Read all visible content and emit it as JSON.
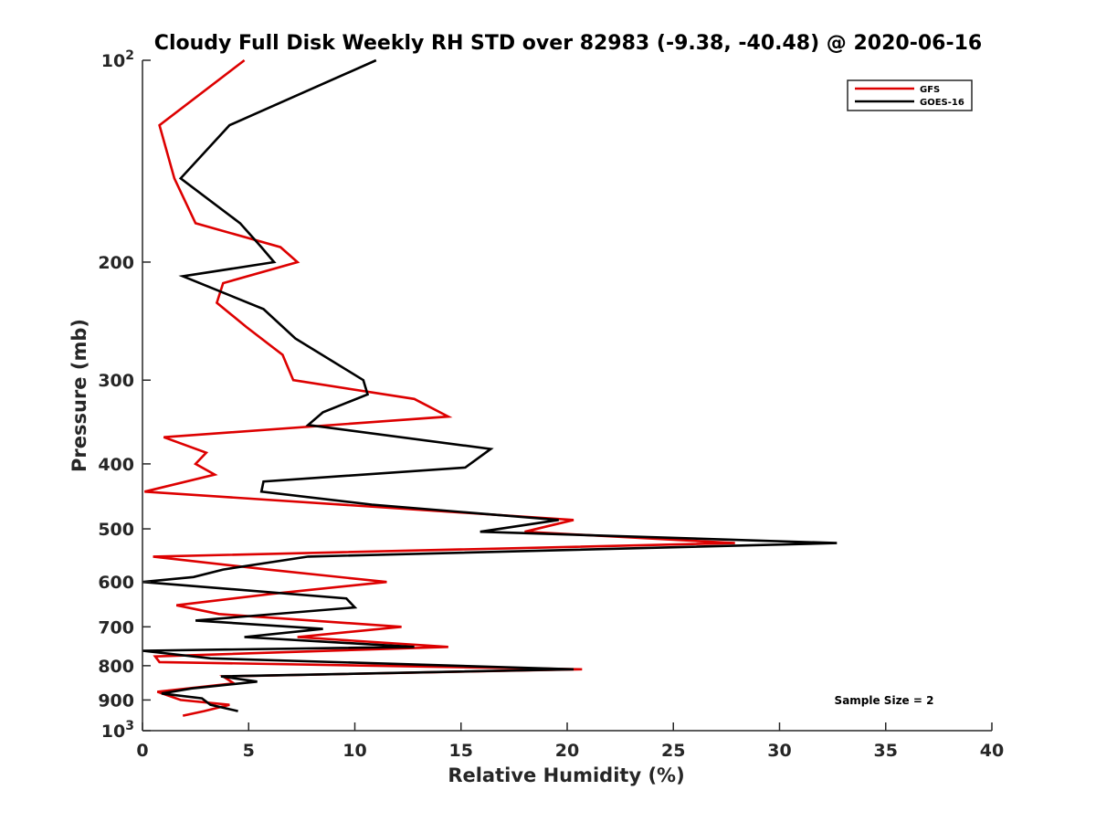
{
  "chart_data": {
    "type": "line",
    "title": "Cloudy Full Disk Weekly RH STD over 82983 (-9.38, -40.48) @ 2020-06-16",
    "xlabel": "Relative Humidity (%)",
    "ylabel": "Pressure (mb)",
    "xlim": [
      0,
      40
    ],
    "ylim": [
      100,
      1000
    ],
    "y_scale": "log",
    "y_reversed": true,
    "x_ticks": [
      "0",
      "5",
      "10",
      "15",
      "20",
      "25",
      "30",
      "35",
      "40"
    ],
    "y_ticks": [
      {
        "value": 100,
        "base": "10",
        "exp": "2"
      },
      {
        "value": 200,
        "label": "200"
      },
      {
        "value": 300,
        "label": "300"
      },
      {
        "value": 400,
        "label": "400"
      },
      {
        "value": 500,
        "label": "500"
      },
      {
        "value": 600,
        "label": "600"
      },
      {
        "value": 700,
        "label": "700"
      },
      {
        "value": 800,
        "label": "800"
      },
      {
        "value": 900,
        "label": "900"
      },
      {
        "value": 1000,
        "base": "10",
        "exp": "3"
      }
    ],
    "grid": false,
    "legend_position": "top-right",
    "annotation": "Sample Size = 2",
    "series": [
      {
        "name": "GFS",
        "color": "#dd0000",
        "points": [
          [
            4.8,
            100
          ],
          [
            0.8,
            125
          ],
          [
            1.5,
            150
          ],
          [
            2.5,
            175
          ],
          [
            6.5,
            190
          ],
          [
            7.3,
            200
          ],
          [
            3.8,
            215
          ],
          [
            3.5,
            230
          ],
          [
            4.9,
            250
          ],
          [
            6.6,
            275
          ],
          [
            7.1,
            300
          ],
          [
            12.8,
            320
          ],
          [
            14.4,
            340
          ],
          [
            1.0,
            365
          ],
          [
            3.0,
            385
          ],
          [
            2.5,
            400
          ],
          [
            3.4,
            415
          ],
          [
            0.1,
            440
          ],
          [
            20.3,
            485
          ],
          [
            18.0,
            505
          ],
          [
            27.9,
            525
          ],
          [
            0.5,
            550
          ],
          [
            5.9,
            575
          ],
          [
            11.5,
            600
          ],
          [
            6.1,
            625
          ],
          [
            1.6,
            650
          ],
          [
            3.6,
            670
          ],
          [
            12.2,
            700
          ],
          [
            7.3,
            725
          ],
          [
            14.4,
            750
          ],
          [
            0.6,
            775
          ],
          [
            0.8,
            790
          ],
          [
            20.7,
            810
          ],
          [
            3.8,
            830
          ],
          [
            4.3,
            850
          ],
          [
            0.7,
            875
          ],
          [
            1.8,
            900
          ],
          [
            4.1,
            915
          ],
          [
            2.9,
            935
          ],
          [
            1.9,
            950
          ]
        ]
      },
      {
        "name": "GOES-16",
        "color": "#000000",
        "points": [
          [
            11.0,
            100
          ],
          [
            4.1,
            125
          ],
          [
            1.8,
            150
          ],
          [
            4.6,
            175
          ],
          [
            5.6,
            190
          ],
          [
            6.2,
            200
          ],
          [
            1.9,
            210
          ],
          [
            5.7,
            235
          ],
          [
            7.2,
            260
          ],
          [
            10.4,
            300
          ],
          [
            10.6,
            315
          ],
          [
            8.5,
            335
          ],
          [
            7.8,
            350
          ],
          [
            16.4,
            380
          ],
          [
            15.2,
            405
          ],
          [
            5.7,
            425
          ],
          [
            5.6,
            440
          ],
          [
            10.8,
            460
          ],
          [
            19.6,
            485
          ],
          [
            15.9,
            505
          ],
          [
            32.7,
            525
          ],
          [
            7.8,
            550
          ],
          [
            3.8,
            575
          ],
          [
            2.4,
            590
          ],
          [
            0.0,
            600
          ],
          [
            9.6,
            635
          ],
          [
            10.0,
            655
          ],
          [
            2.5,
            685
          ],
          [
            8.5,
            705
          ],
          [
            4.8,
            725
          ],
          [
            12.8,
            750
          ],
          [
            0.0,
            760
          ],
          [
            3.2,
            780
          ],
          [
            20.3,
            810
          ],
          [
            3.7,
            830
          ],
          [
            5.4,
            845
          ],
          [
            2.3,
            865
          ],
          [
            0.9,
            880
          ],
          [
            2.8,
            895
          ],
          [
            3.2,
            915
          ],
          [
            4.5,
            935
          ]
        ]
      }
    ]
  }
}
